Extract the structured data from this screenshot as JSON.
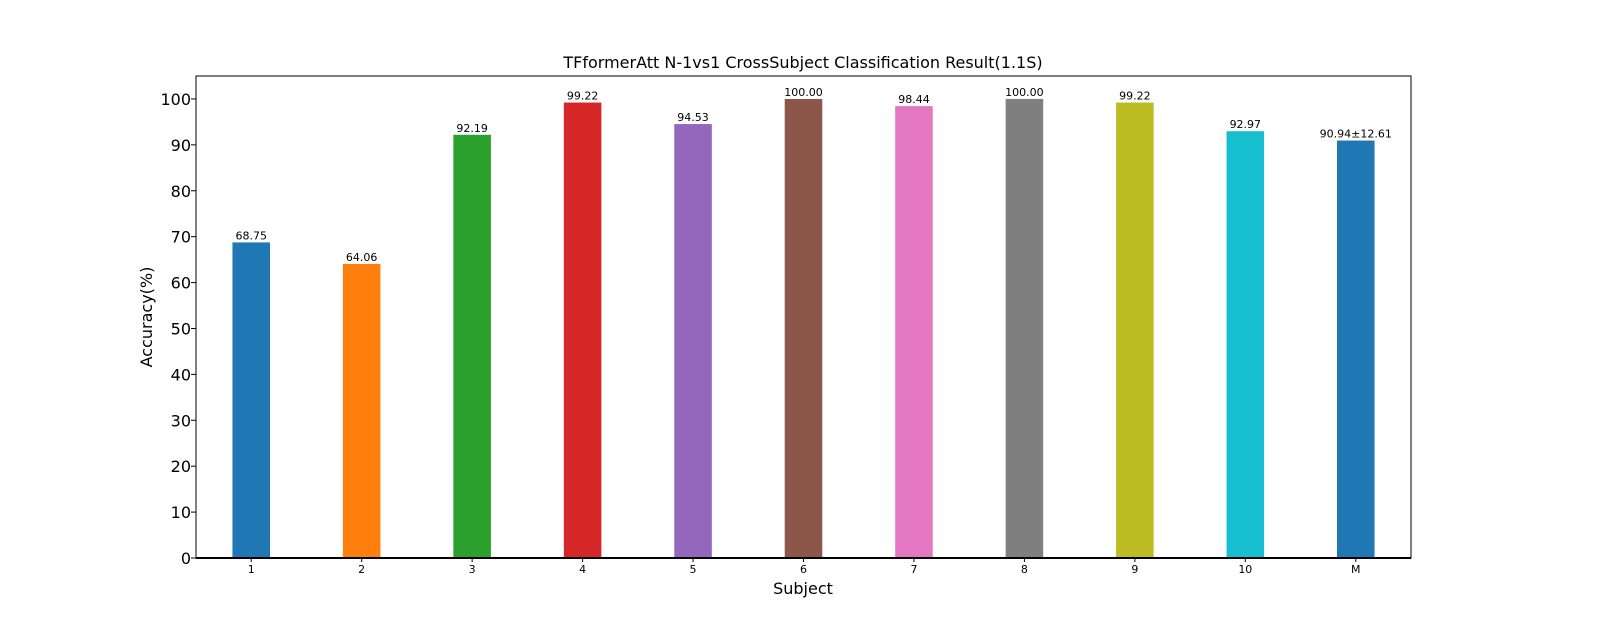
{
  "chart_data": {
    "type": "bar",
    "title": "TFformerAtt N-1vs1 CrossSubject Classification Result(1.1S)",
    "xlabel": "Subject",
    "ylabel": "Accuracy(%)",
    "ylim": [
      0,
      105
    ],
    "yticks": [
      0,
      10,
      20,
      30,
      40,
      50,
      60,
      70,
      80,
      90,
      100
    ],
    "grid": false,
    "categories": [
      "1",
      "2",
      "3",
      "4",
      "5",
      "6",
      "7",
      "8",
      "9",
      "10",
      "M"
    ],
    "values": [
      68.75,
      64.06,
      92.19,
      99.22,
      94.53,
      100.0,
      98.44,
      100.0,
      99.22,
      92.97,
      90.94
    ],
    "data_labels": [
      "68.75",
      "64.06",
      "92.19",
      "99.22",
      "94.53",
      "100.00",
      "98.44",
      "100.00",
      "99.22",
      "92.97",
      "90.94±12.61"
    ],
    "colors": [
      "#1f77b4",
      "#ff7f0e",
      "#2ca02c",
      "#d62728",
      "#9467bd",
      "#8c564b",
      "#e377c2",
      "#7f7f7f",
      "#bcbd22",
      "#17becf",
      "#1f77b4"
    ],
    "label_colors": [
      "#000000",
      "#000000",
      "#000000",
      "#000000",
      "#000000",
      "#000000",
      "#000000",
      "#000000",
      "#000000",
      "#000000",
      "#ff0000"
    ]
  }
}
